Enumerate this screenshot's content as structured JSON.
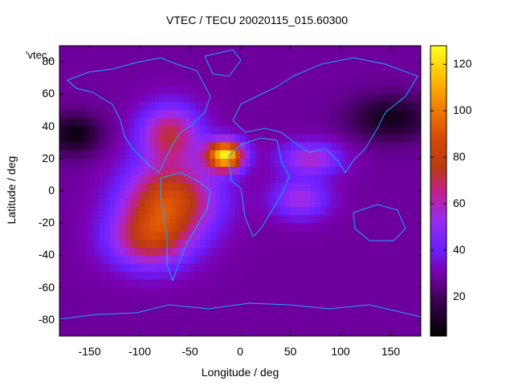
{
  "chart_data": {
    "type": "heatmap",
    "title": "VTEC / TECU 20020115_015.60300",
    "legend_label": "'vtec_",
    "xlabel": "Longitude / deg",
    "ylabel": "Latitude / deg",
    "xlim": [
      -180,
      180
    ],
    "ylim": [
      -90,
      90
    ],
    "x_ticks": [
      -150,
      -100,
      -50,
      0,
      50,
      100,
      150
    ],
    "y_ticks": [
      -80,
      -60,
      -40,
      -20,
      0,
      20,
      40,
      60,
      80
    ],
    "colorbar": {
      "min": 3,
      "max": 128,
      "ticks": [
        20,
        40,
        60,
        80,
        100,
        120
      ]
    },
    "background_level": 28,
    "features": [
      {
        "name": "equatorial-anomaly-peak-africa",
        "lon": -15,
        "lat": 22,
        "value": 122
      },
      {
        "name": "equatorial-anomaly-south-america",
        "lon": -70,
        "lat": -5,
        "value": 85
      },
      {
        "name": "southern-crest-atlantic",
        "lon": -90,
        "lat": -30,
        "value": 72
      },
      {
        "name": "northern-crest-america",
        "lon": -70,
        "lat": 35,
        "value": 70
      },
      {
        "name": "arabian-sea-band",
        "lon": 70,
        "lat": 20,
        "value": 58
      },
      {
        "name": "indian-ocean-band",
        "lon": 60,
        "lat": -5,
        "value": 55
      },
      {
        "name": "polar-low-north-pacific",
        "lon": -165,
        "lat": 35,
        "value": 6
      },
      {
        "name": "polar-low-asia",
        "lon": 150,
        "lat": 45,
        "value": 8
      }
    ]
  }
}
